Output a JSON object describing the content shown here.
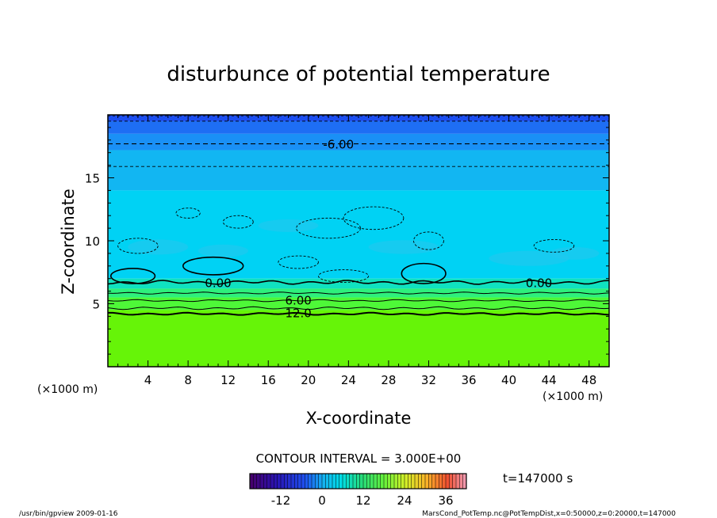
{
  "chart_data": {
    "type": "heatmap",
    "title": "disturbunce of potential temperature",
    "xlabel": "X-coordinate",
    "ylabel": "Z-coordinate",
    "x_unit_left": "(×1000 m)",
    "x_unit_right": "(×1000 m)",
    "xlim": [
      0,
      50
    ],
    "ylim": [
      0,
      20
    ],
    "x_ticks": [
      "4",
      "8",
      "12",
      "16",
      "20",
      "24",
      "28",
      "32",
      "36",
      "40",
      "44",
      "48"
    ],
    "y_ticks": [
      "5",
      "10",
      "15"
    ],
    "contour_interval_label": "CONTOUR INTERVAL = 3.000E+00",
    "time_label": "t=147000 s",
    "colorbar": {
      "min": -21,
      "max": 42,
      "tick_labels": [
        "-12",
        "0",
        "12",
        "24",
        "36"
      ],
      "ticks": [
        -12,
        0,
        12,
        24,
        36
      ]
    },
    "contour_labels": [
      {
        "text": "-6.00",
        "x": 23,
        "z": 17.7
      },
      {
        "text": "0.00",
        "x": 11,
        "z": 6.7
      },
      {
        "text": "0.00",
        "x": 43,
        "z": 6.7
      },
      {
        "text": "6.00",
        "x": 19,
        "z": 5.3
      },
      {
        "text": "12.0",
        "x": 19,
        "z": 4.3
      }
    ],
    "layers": [
      {
        "z0": 19.5,
        "z1": 20,
        "value": -12,
        "color": "#1c4ef0"
      },
      {
        "z0": 18.5,
        "z1": 19.5,
        "value": -9,
        "color": "#1e6ef4"
      },
      {
        "z0": 17.2,
        "z1": 18.5,
        "value": -6,
        "color": "#1a90f6"
      },
      {
        "z0": 14,
        "z1": 17.2,
        "value": -3,
        "color": "#12b6f2"
      },
      {
        "z0": 7,
        "z1": 14,
        "value": 0,
        "color": "#00d2f4"
      },
      {
        "z0": 6.2,
        "z1": 7,
        "value": 3,
        "color": "#10e2c0"
      },
      {
        "z0": 5.5,
        "z1": 6.2,
        "value": 6,
        "color": "#2ef07c"
      },
      {
        "z0": 4.5,
        "z1": 5.5,
        "value": 9,
        "color": "#4ef838"
      },
      {
        "z0": 0,
        "z1": 4.5,
        "value": 15,
        "color": "#66f408"
      }
    ]
  },
  "footer": {
    "left": "/usr/bin/gpview   2009-01-16",
    "right": "MarsCond_PotTemp.nc@PotTempDist,x=0:50000,z=0:20000,t=147000"
  }
}
